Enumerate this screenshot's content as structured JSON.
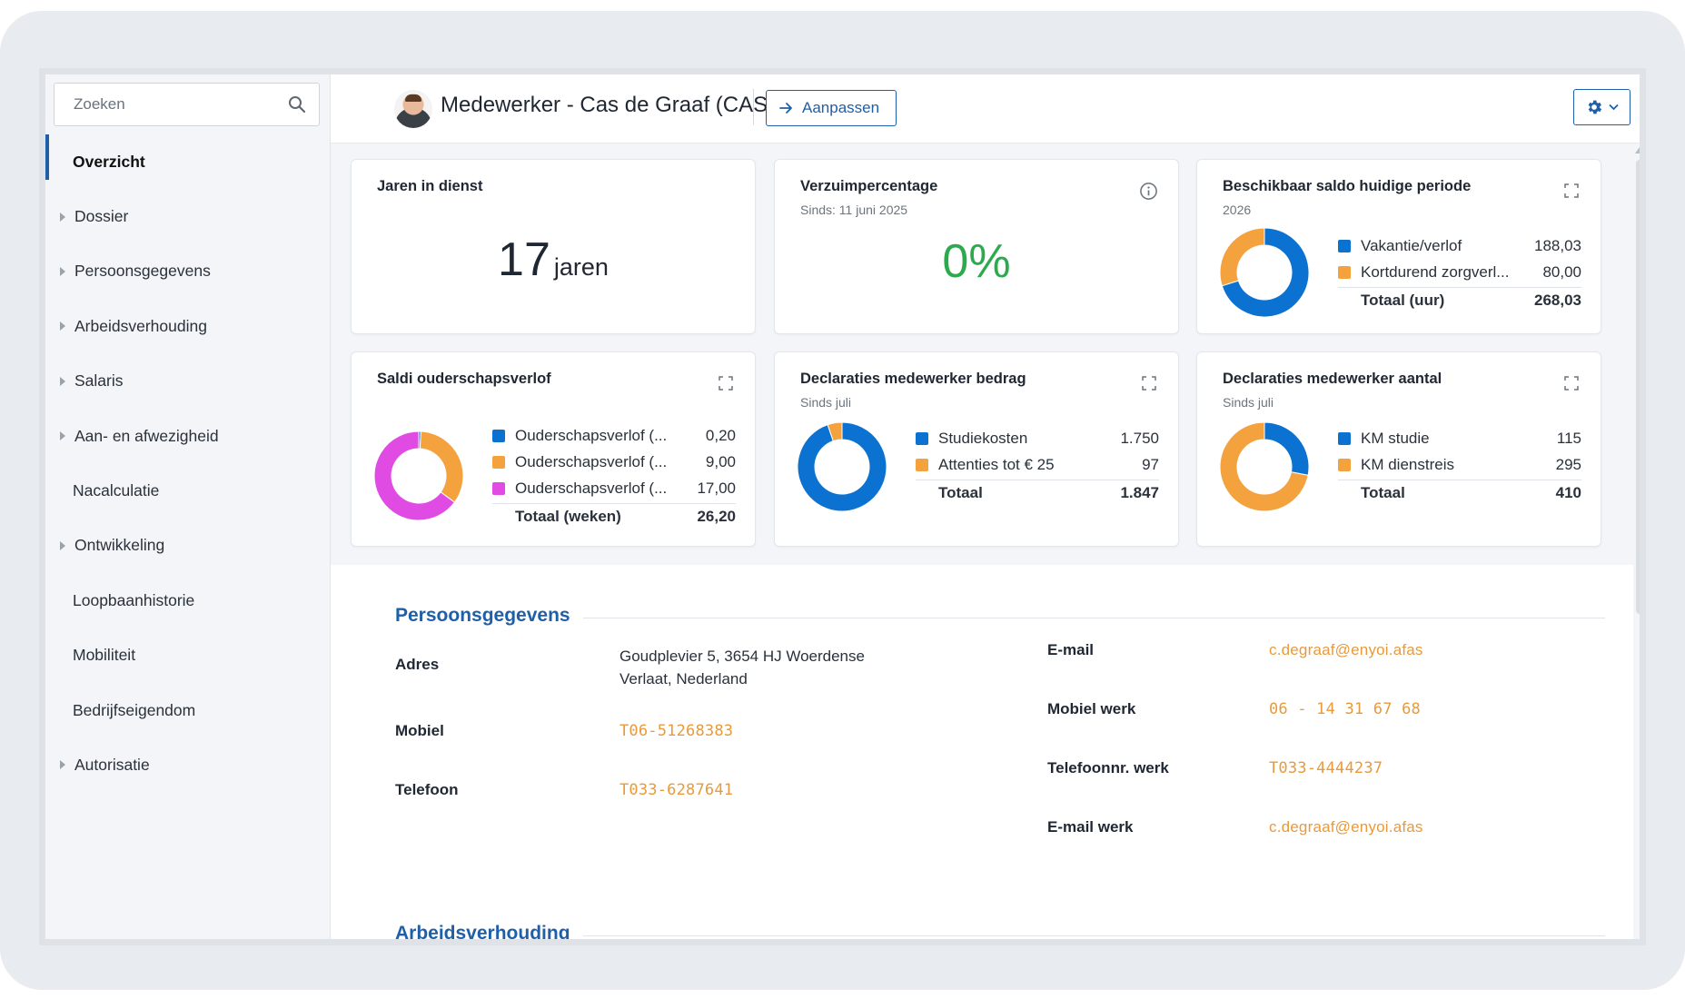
{
  "search": {
    "placeholder": "Zoeken"
  },
  "sidebar": {
    "items": [
      {
        "label": "Overzicht",
        "active": true,
        "expandable": false
      },
      {
        "label": "Dossier",
        "expandable": true
      },
      {
        "label": "Persoonsgegevens",
        "expandable": true
      },
      {
        "label": "Arbeidsverhouding",
        "expandable": true
      },
      {
        "label": "Salaris",
        "expandable": true
      },
      {
        "label": "Aan- en afwezigheid",
        "expandable": true
      },
      {
        "label": "Nacalculatie",
        "expandable": false
      },
      {
        "label": "Ontwikkeling",
        "expandable": true
      },
      {
        "label": "Loopbaanhistorie",
        "expandable": false
      },
      {
        "label": "Mobiliteit",
        "expandable": false
      },
      {
        "label": "Bedrijfseigendom",
        "expandable": false
      },
      {
        "label": "Autorisatie",
        "expandable": true
      }
    ]
  },
  "header": {
    "title": "Medewerker - Cas de Graaf (CASG)",
    "edit_label": "Aanpassen"
  },
  "colors": {
    "accent": "#1f5fa8",
    "blue": "#0b72d1",
    "orange": "#f4a23e",
    "magenta": "#e04be3",
    "green": "#2eaa4e",
    "link": "#e89a3c"
  },
  "cards": {
    "jaren": {
      "title": "Jaren in dienst",
      "value": "17",
      "unit": "jaren"
    },
    "verzuim": {
      "title": "Verzuimpercentage",
      "subtitle": "Sinds: 11 juni 2025",
      "value": "0%"
    },
    "saldo": {
      "title": "Beschikbaar saldo huidige periode",
      "subtitle": "2026",
      "rows": [
        {
          "label": "Vakantie/verlof",
          "value": "188,03"
        },
        {
          "label": "Kortdurend zorgverl...",
          "value": "80,00"
        }
      ],
      "total_label": "Totaal (uur)",
      "total_value": "268,03"
    },
    "ouderschap": {
      "title": "Saldi ouderschapsverlof",
      "rows": [
        {
          "label": "Ouderschapsverlof (...",
          "value": "0,20"
        },
        {
          "label": "Ouderschapsverlof (...",
          "value": "9,00"
        },
        {
          "label": "Ouderschapsverlof (...",
          "value": "17,00"
        }
      ],
      "total_label": "Totaal (weken)",
      "total_value": "26,20"
    },
    "decl_bedrag": {
      "title": "Declaraties medewerker bedrag",
      "subtitle": "Sinds juli",
      "rows": [
        {
          "label": "Studiekosten",
          "value": "1.750"
        },
        {
          "label": "Attenties tot € 25",
          "value": "97"
        }
      ],
      "total_label": "Totaal",
      "total_value": "1.847"
    },
    "decl_aantal": {
      "title": "Declaraties medewerker aantal",
      "subtitle": "Sinds juli",
      "rows": [
        {
          "label": "KM studie",
          "value": "115"
        },
        {
          "label": "KM dienstreis",
          "value": "295"
        }
      ],
      "total_label": "Totaal",
      "total_value": "410"
    }
  },
  "chart_data": [
    {
      "type": "pie",
      "title": "Beschikbaar saldo huidige periode",
      "categories": [
        "Vakantie/verlof",
        "Kortdurend zorgverl..."
      ],
      "values": [
        188.03,
        80.0
      ]
    },
    {
      "type": "pie",
      "title": "Saldi ouderschapsverlof",
      "categories": [
        "Ouderschapsverlof (...",
        "Ouderschapsverlof (...",
        "Ouderschapsverlof (..."
      ],
      "values": [
        0.2,
        9.0,
        17.0
      ]
    },
    {
      "type": "pie",
      "title": "Declaraties medewerker bedrag",
      "categories": [
        "Studiekosten",
        "Attenties tot € 25"
      ],
      "values": [
        1750,
        97
      ]
    },
    {
      "type": "pie",
      "title": "Declaraties medewerker aantal",
      "categories": [
        "KM studie",
        "KM dienstreis"
      ],
      "values": [
        115,
        295
      ]
    }
  ],
  "persoonsgegevens": {
    "title": "Persoonsgegevens",
    "adres_label": "Adres",
    "adres_line1": "Goudplevier 5, 3654 HJ Woerdense",
    "adres_line2": "Verlaat, Nederland",
    "mobiel_label": "Mobiel",
    "mobiel_value": "T06-51268383",
    "telefoon_label": "Telefoon",
    "telefoon_value": "T033-6287641",
    "email_label": "E-mail",
    "email_value": "c.degraaf@enyoi.afas",
    "mobiel_werk_label": "Mobiel werk",
    "mobiel_werk_value": "06 - 14 31 67 68",
    "tel_werk_label": "Telefoonnr. werk",
    "tel_werk_value": "T033-4444237",
    "email_werk_label": "E-mail werk",
    "email_werk_value": "c.degraaf@enyoi.afas"
  },
  "arbeidsverhouding": {
    "title": "Arbeidsverhouding"
  }
}
